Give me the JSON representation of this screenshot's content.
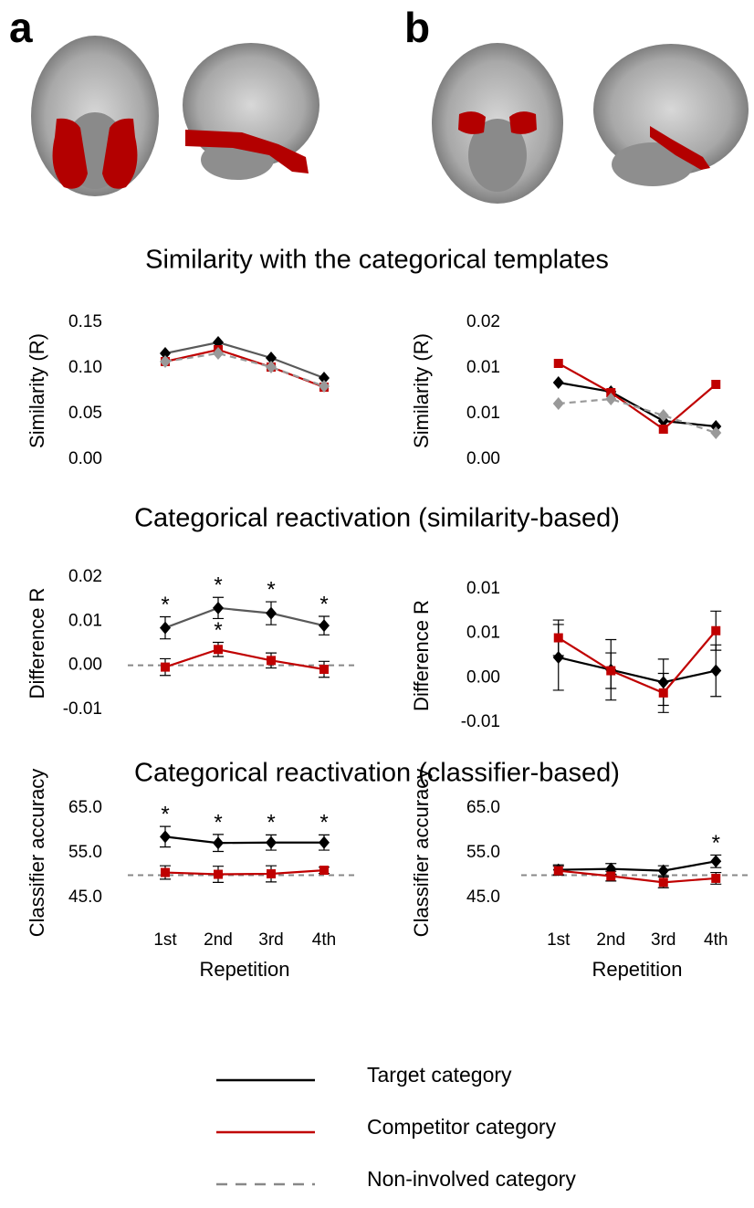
{
  "panels": [
    "a",
    "b"
  ],
  "section_titles": [
    "Similarity with the categorical templates",
    "Categorical reactivation (similarity-based)",
    "Categorical reactivation (classifier-based)"
  ],
  "chart_data": [
    {
      "type": "line",
      "ylabel": "Similarity (R)",
      "categories": [
        null,
        null,
        null,
        null
      ],
      "ylim": [
        0,
        0.15
      ],
      "yticks": [
        {
          "value": 0,
          "label": "0.00"
        },
        {
          "value": 0.05,
          "label": "0.05"
        },
        {
          "value": 0.1,
          "label": "0.10"
        },
        {
          "value": 0.15,
          "label": "0.15"
        }
      ],
      "series": [
        {
          "name": "Target category",
          "color": "#000000",
          "line_color": "#595959",
          "marker": "diamond",
          "values": [
            0.116,
            0.128,
            0.111,
            0.089
          ]
        },
        {
          "name": "Competitor category",
          "color": "#c00000",
          "marker": "square",
          "values": [
            0.107,
            0.12,
            0.101,
            0.079
          ]
        },
        {
          "name": "Non-involved category",
          "color": "#999999",
          "dash": true,
          "marker": "diamond",
          "values": [
            0.107,
            0.116,
            0.101,
            0.08
          ]
        }
      ]
    },
    {
      "type": "line",
      "ylabel": "Similarity (R)",
      "categories": [
        null,
        null,
        null,
        null
      ],
      "ylim": [
        0,
        0.015
      ],
      "yticks": [
        {
          "value": 0,
          "label": "0.00"
        },
        {
          "value": 0.005,
          "label": "0.01"
        },
        {
          "value": 0.01,
          "label": "0.01"
        },
        {
          "value": 0.015,
          "label": "0.02"
        }
      ],
      "series": [
        {
          "name": "Target category",
          "color": "#000000",
          "marker": "diamond",
          "values": [
            0.0084,
            0.0074,
            0.0042,
            0.0036
          ]
        },
        {
          "name": "Competitor category",
          "color": "#c00000",
          "marker": "square",
          "values": [
            0.0105,
            0.0073,
            0.0033,
            0.0082
          ]
        },
        {
          "name": "Non-involved category",
          "color": "#999999",
          "dash": true,
          "marker": "diamond",
          "values": [
            0.0061,
            0.0066,
            0.0048,
            0.0029
          ]
        }
      ]
    },
    {
      "type": "line",
      "ylabel": "Difference R",
      "categories": [
        null,
        null,
        null,
        null
      ],
      "ylim": [
        -0.01,
        0.02
      ],
      "yticks": [
        {
          "value": -0.01,
          "label": "-0.01"
        },
        {
          "value": 0,
          "label": "0.00"
        },
        {
          "value": 0.01,
          "label": "0.01"
        },
        {
          "value": 0.02,
          "label": "0.02"
        }
      ],
      "reference_line": 0,
      "series": [
        {
          "name": "Target category",
          "color": "#000000",
          "line_color": "#595959",
          "marker": "diamond",
          "values": [
            0.0085,
            0.013,
            0.0118,
            0.009
          ],
          "errors": [
            0.0025,
            0.0024,
            0.0026,
            0.0021
          ],
          "significance": [
            "*",
            "*",
            "*",
            "*"
          ]
        },
        {
          "name": "Competitor category",
          "color": "#c00000",
          "marker": "square",
          "values": [
            -0.0004,
            0.0036,
            0.0011,
            -0.0009
          ],
          "errors": [
            0.0019,
            0.0016,
            0.0017,
            0.0018
          ],
          "significance": [
            null,
            "*",
            null,
            null
          ]
        }
      ]
    },
    {
      "type": "line",
      "ylabel": "Difference R",
      "categories": [
        null,
        null,
        null,
        null
      ],
      "ylim": [
        -0.005,
        0.01
      ],
      "yticks": [
        {
          "value": -0.005,
          "label": "-0.01"
        },
        {
          "value": 0,
          "label": "0.00"
        },
        {
          "value": 0.005,
          "label": "0.01"
        },
        {
          "value": 0.01,
          "label": "0.01"
        }
      ],
      "series": [
        {
          "name": "Target category",
          "color": "#000000",
          "marker": "diamond",
          "values": [
            0.0023,
            0.0009,
            -0.0005,
            0.0008
          ],
          "errors": [
            0.0037,
            0.0034,
            0.0026,
            0.0029
          ]
        },
        {
          "name": "Competitor category",
          "color": "#c00000",
          "marker": "square",
          "values": [
            0.0045,
            0.0008,
            -0.0017,
            0.0053
          ],
          "errors": [
            0.002,
            0.002,
            0.0022,
            0.0022
          ]
        }
      ]
    },
    {
      "type": "line",
      "ylabel": "Classifier accuracy",
      "xlabel": "Repetition",
      "categories": [
        "1st",
        "2nd",
        "3rd",
        "4th"
      ],
      "ylim": [
        45,
        65
      ],
      "yticks": [
        {
          "value": 45,
          "label": "45.0"
        },
        {
          "value": 55,
          "label": "55.0"
        },
        {
          "value": 65,
          "label": "65.0"
        }
      ],
      "reference_line": 50,
      "series": [
        {
          "name": "Target category",
          "color": "#000000",
          "marker": "diamond",
          "values": [
            58.6,
            57.2,
            57.3,
            57.3
          ],
          "errors": [
            2.3,
            1.9,
            1.7,
            1.7
          ],
          "significance": [
            "*",
            "*",
            "*",
            "*"
          ]
        },
        {
          "name": "Competitor category",
          "color": "#c00000",
          "marker": "square",
          "values": [
            50.6,
            50.2,
            50.3,
            51.1
          ],
          "errors": [
            1.5,
            1.8,
            1.8,
            0.7
          ]
        }
      ]
    },
    {
      "type": "line",
      "ylabel": "Classifier accuracy",
      "xlabel": "Repetition",
      "categories": [
        "1st",
        "2nd",
        "3rd",
        "4th"
      ],
      "ylim": [
        45,
        65
      ],
      "yticks": [
        {
          "value": 45,
          "label": "45.0"
        },
        {
          "value": 55,
          "label": "55.0"
        },
        {
          "value": 65,
          "label": "65.0"
        }
      ],
      "reference_line": 50,
      "series": [
        {
          "name": "Target category",
          "color": "#000000",
          "marker": "diamond",
          "values": [
            51.2,
            51.4,
            51.0,
            53.1
          ],
          "errors": [
            1.1,
            1.2,
            1.1,
            1.4
          ],
          "significance": [
            null,
            null,
            null,
            "*"
          ]
        },
        {
          "name": "Competitor category",
          "color": "#c00000",
          "marker": "square",
          "values": [
            51.0,
            49.8,
            48.4,
            49.3
          ],
          "errors": [
            1.0,
            1.1,
            1.2,
            1.3
          ]
        }
      ]
    }
  ]
}
